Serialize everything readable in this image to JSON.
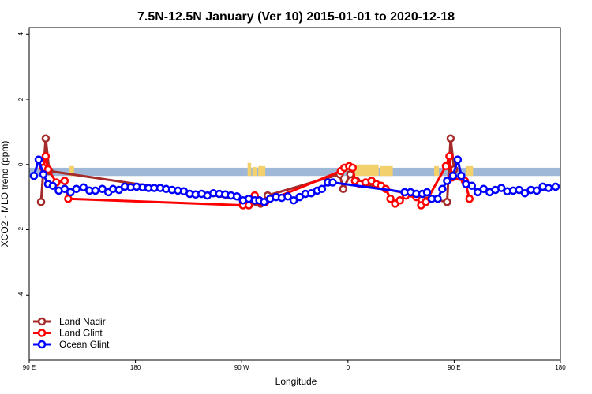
{
  "chart_data": {
    "type": "line",
    "title": "7.5N-12.5N January (Ver 10)   2015-01-01 to 2020-12-18",
    "xlabel": "Longitude",
    "ylabel": "XCO2 - MLO trend (ppm)",
    "xlim": [
      90,
      540
    ],
    "ylim": [
      -6,
      4.2
    ],
    "x_ticks": [
      {
        "value": 90,
        "label": "90 E"
      },
      {
        "value": 180,
        "label": "180"
      },
      {
        "value": 270,
        "label": "90 W"
      },
      {
        "value": 360,
        "label": "0"
      },
      {
        "value": 450,
        "label": "90 E"
      },
      {
        "value": 540,
        "label": "180"
      }
    ],
    "y_ticks": [
      {
        "value": 4,
        "label": "4"
      },
      {
        "value": 2,
        "label": "2"
      },
      {
        "value": 0,
        "label": "0"
      },
      {
        "value": -2,
        "label": "-2"
      },
      {
        "value": -4,
        "label": "-4"
      }
    ],
    "legend_position": "bottom-left",
    "band": {
      "y_top": -0.1,
      "y_bottom": -0.35,
      "color": "#9fb8d8"
    },
    "land_color": "#f2d06b",
    "land_segments": [
      [
        124,
        128,
        -0.05
      ],
      [
        275,
        278,
        0.05
      ],
      [
        279,
        283,
        -0.08
      ],
      [
        284,
        290,
        -0.05
      ],
      [
        360,
        365,
        -0.05
      ],
      [
        366,
        386,
        0.0
      ],
      [
        387,
        398,
        -0.05
      ],
      [
        433,
        437,
        -0.05
      ],
      [
        460,
        466,
        -0.05
      ]
    ],
    "series": [
      {
        "name": "Land Nadir",
        "color": "#a52a2a",
        "points": [
          [
            100,
            -1.15
          ],
          [
            104,
            0.8
          ],
          [
            107,
            -0.2
          ],
          [
            275,
            -1.1
          ],
          [
            282,
            -1.15
          ],
          [
            286,
            -1.2
          ],
          [
            292,
            -0.95
          ],
          [
            353,
            -0.3
          ],
          [
            356,
            -0.75
          ],
          [
            362,
            -0.3
          ],
          [
            367,
            -0.5
          ],
          [
            372,
            -0.6
          ],
          [
            444,
            -1.15
          ],
          [
            447,
            0.8
          ],
          [
            450,
            -0.15
          ]
        ]
      },
      {
        "name": "Land Glint",
        "color": "#ff0000",
        "points": [
          [
            102,
            -0.1
          ],
          [
            104,
            0.25
          ],
          [
            106,
            -0.15
          ],
          [
            113,
            -0.55
          ],
          [
            120,
            -0.5
          ],
          [
            123,
            -1.05
          ],
          [
            271,
            -1.25
          ],
          [
            276,
            -1.25
          ],
          [
            281,
            -0.95
          ],
          [
            286,
            -1.15
          ],
          [
            290,
            -1.15
          ],
          [
            354,
            -0.2
          ],
          [
            357,
            -0.1
          ],
          [
            361,
            -0.05
          ],
          [
            364,
            -0.1
          ],
          [
            366,
            -0.5
          ],
          [
            370,
            -0.6
          ],
          [
            375,
            -0.55
          ],
          [
            380,
            -0.5
          ],
          [
            384,
            -0.6
          ],
          [
            388,
            -0.65
          ],
          [
            392,
            -0.75
          ],
          [
            396,
            -1.05
          ],
          [
            400,
            -1.2
          ],
          [
            404,
            -1.1
          ],
          [
            409,
            -0.95
          ],
          [
            418,
            -1.0
          ],
          [
            422,
            -1.25
          ],
          [
            426,
            -1.15
          ],
          [
            443,
            -0.05
          ],
          [
            446,
            0.25
          ],
          [
            448,
            -0.4
          ],
          [
            459,
            -0.5
          ],
          [
            463,
            -1.05
          ]
        ]
      },
      {
        "name": "Ocean Glint",
        "color": "#0000ff",
        "points": [
          [
            94,
            -0.35
          ],
          [
            98,
            0.15
          ],
          [
            102,
            -0.3
          ],
          [
            106,
            -0.6
          ],
          [
            110,
            -0.65
          ],
          [
            115,
            -0.8
          ],
          [
            120,
            -0.75
          ],
          [
            125,
            -0.85
          ],
          [
            130,
            -0.75
          ],
          [
            136,
            -0.7
          ],
          [
            141,
            -0.8
          ],
          [
            146,
            -0.8
          ],
          [
            152,
            -0.75
          ],
          [
            157,
            -0.85
          ],
          [
            161,
            -0.75
          ],
          [
            166,
            -0.78
          ],
          [
            171,
            -0.68
          ],
          [
            176,
            -0.7
          ],
          [
            181,
            -0.68
          ],
          [
            186,
            -0.7
          ],
          [
            191,
            -0.72
          ],
          [
            196,
            -0.72
          ],
          [
            201,
            -0.72
          ],
          [
            206,
            -0.75
          ],
          [
            211,
            -0.78
          ],
          [
            216,
            -0.8
          ],
          [
            221,
            -0.82
          ],
          [
            226,
            -0.9
          ],
          [
            231,
            -0.92
          ],
          [
            236,
            -0.9
          ],
          [
            241,
            -0.95
          ],
          [
            246,
            -0.88
          ],
          [
            251,
            -0.9
          ],
          [
            256,
            -0.92
          ],
          [
            261,
            -0.95
          ],
          [
            266,
            -0.98
          ],
          [
            271,
            -1.1
          ],
          [
            276,
            -1.05
          ],
          [
            281,
            -1.1
          ],
          [
            285,
            -1.1
          ],
          [
            289,
            -1.15
          ],
          [
            294,
            -1.05
          ],
          [
            299,
            -1.0
          ],
          [
            304,
            -1.02
          ],
          [
            309,
            -0.98
          ],
          [
            314,
            -1.1
          ],
          [
            319,
            -1.0
          ],
          [
            324,
            -0.9
          ],
          [
            329,
            -0.88
          ],
          [
            334,
            -0.8
          ],
          [
            338,
            -0.75
          ],
          [
            343,
            -0.55
          ],
          [
            347,
            -0.55
          ],
          [
            408,
            -0.85
          ],
          [
            413,
            -0.85
          ],
          [
            418,
            -0.9
          ],
          [
            423,
            -0.9
          ],
          [
            427,
            -0.85
          ],
          [
            431,
            -1.05
          ],
          [
            436,
            -1.05
          ],
          [
            440,
            -0.75
          ],
          [
            444,
            -0.5
          ],
          [
            449,
            -0.35
          ],
          [
            453,
            0.15
          ],
          [
            456,
            -0.35
          ],
          [
            460,
            -0.6
          ],
          [
            465,
            -0.65
          ],
          [
            470,
            -0.85
          ],
          [
            475,
            -0.75
          ],
          [
            480,
            -0.85
          ],
          [
            485,
            -0.78
          ],
          [
            490,
            -0.72
          ],
          [
            495,
            -0.82
          ],
          [
            500,
            -0.8
          ],
          [
            505,
            -0.78
          ],
          [
            510,
            -0.88
          ],
          [
            515,
            -0.78
          ],
          [
            520,
            -0.8
          ],
          [
            525,
            -0.68
          ],
          [
            530,
            -0.72
          ],
          [
            536,
            -0.68
          ]
        ]
      }
    ]
  }
}
